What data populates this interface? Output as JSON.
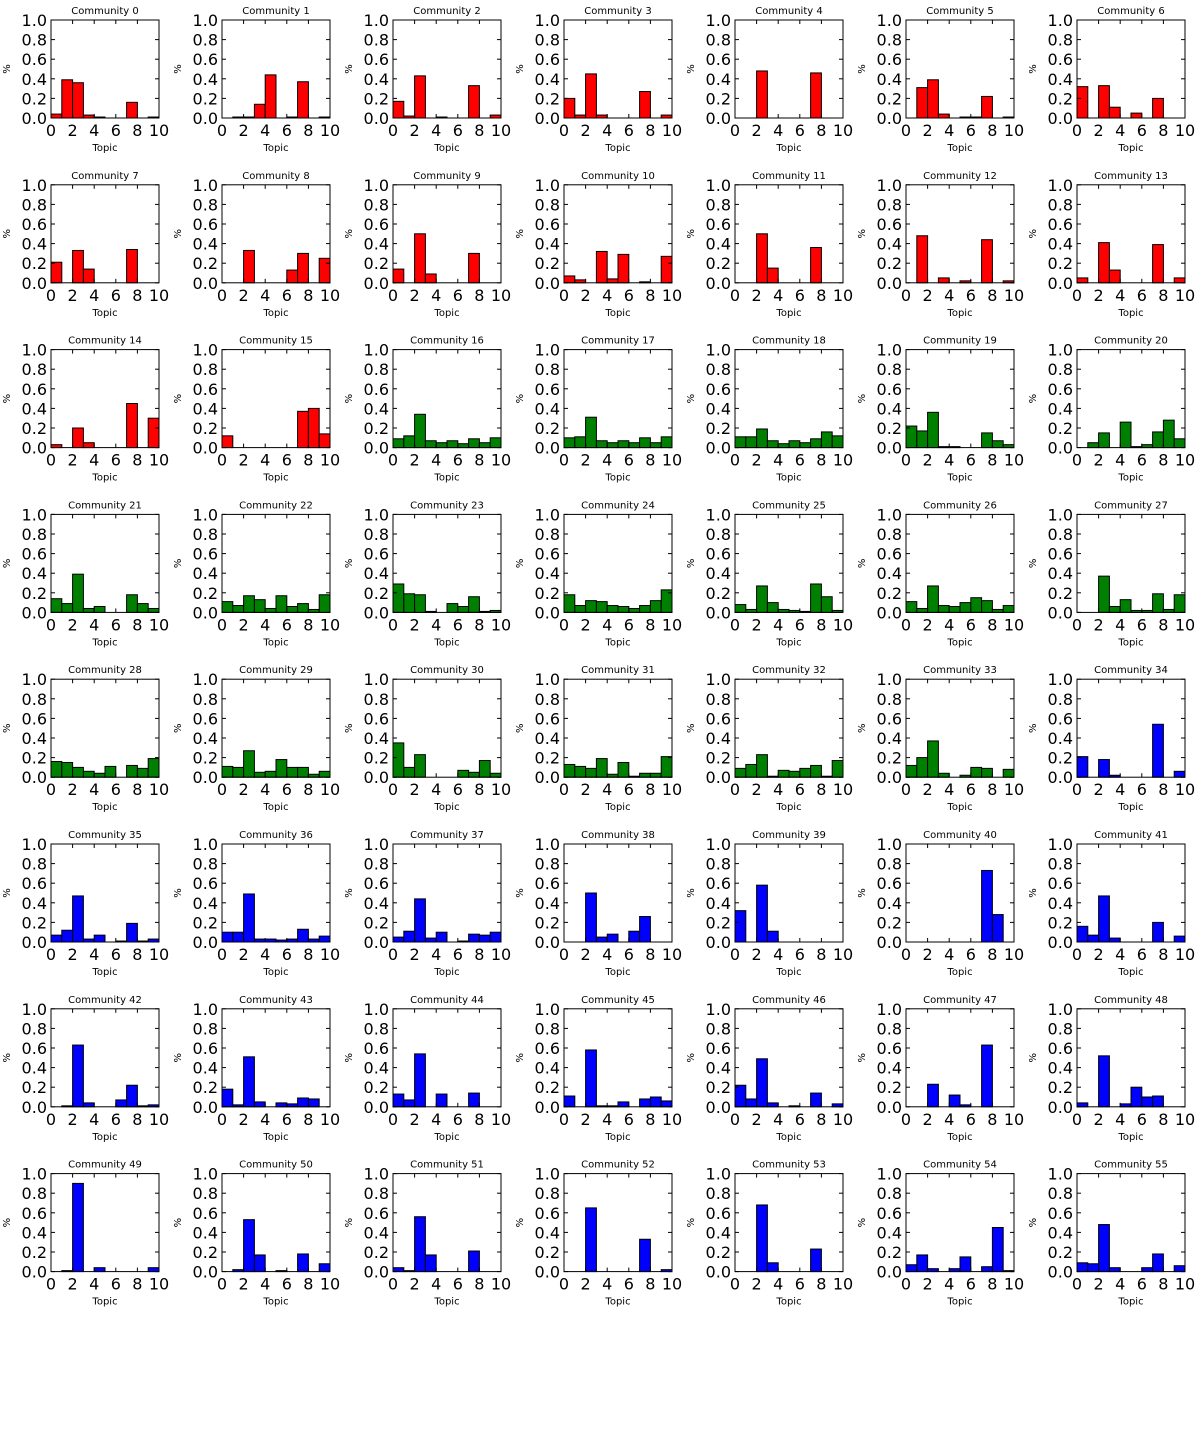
{
  "chart_defaults": {
    "type": "bar",
    "xlabel": "Topic",
    "ylabel": "%",
    "xlim": [
      0,
      10
    ],
    "ylim": [
      0,
      1.0
    ],
    "xticks": [
      "0",
      "2",
      "4",
      "6",
      "8",
      "10"
    ],
    "yticks": [
      "0.0",
      "0.2",
      "0.4",
      "0.6",
      "0.8",
      "1.0"
    ],
    "bar_width": 1,
    "grid": false,
    "legend": "none"
  },
  "colors": {
    "red": "#ff0000",
    "green": "#008000",
    "blue": "#0000ff"
  },
  "chart_data": [
    {
      "title": "Community 0",
      "color": "red",
      "values": [
        0.04,
        0.39,
        0.36,
        0.03,
        0.01,
        0,
        0,
        0.16,
        0,
        0.01
      ]
    },
    {
      "title": "Community 1",
      "color": "red",
      "values": [
        0,
        0.01,
        0.01,
        0.14,
        0.44,
        0,
        0.01,
        0.37,
        0,
        0.01
      ]
    },
    {
      "title": "Community 2",
      "color": "red",
      "values": [
        0.17,
        0.02,
        0.43,
        0,
        0.01,
        0,
        0,
        0.33,
        0,
        0.03
      ]
    },
    {
      "title": "Community 3",
      "color": "red",
      "values": [
        0.2,
        0.03,
        0.45,
        0.03,
        0,
        0,
        0,
        0.27,
        0,
        0.03
      ]
    },
    {
      "title": "Community 4",
      "color": "red",
      "values": [
        0,
        0,
        0.48,
        0,
        0,
        0,
        0,
        0.46,
        0,
        0
      ]
    },
    {
      "title": "Community 5",
      "color": "red",
      "values": [
        0,
        0.31,
        0.39,
        0.04,
        0,
        0.01,
        0.01,
        0.22,
        0,
        0.01
      ]
    },
    {
      "title": "Community 6",
      "color": "red",
      "values": [
        0.32,
        0,
        0.33,
        0.11,
        0,
        0.05,
        0,
        0.2,
        0,
        0
      ]
    },
    {
      "title": "Community 7",
      "color": "red",
      "values": [
        0.21,
        0,
        0.33,
        0.14,
        0,
        0,
        0,
        0.34,
        0,
        0
      ]
    },
    {
      "title": "Community 8",
      "color": "red",
      "values": [
        0,
        0,
        0.33,
        0,
        0,
        0,
        0.13,
        0.3,
        0,
        0.25
      ]
    },
    {
      "title": "Community 9",
      "color": "red",
      "values": [
        0.14,
        0,
        0.5,
        0.09,
        0,
        0,
        0,
        0.3,
        0,
        0
      ]
    },
    {
      "title": "Community 10",
      "color": "red",
      "values": [
        0.07,
        0.03,
        0,
        0.32,
        0.04,
        0.29,
        0,
        0.01,
        0,
        0.27
      ]
    },
    {
      "title": "Community 11",
      "color": "red",
      "values": [
        0,
        0,
        0.5,
        0.15,
        0,
        0,
        0,
        0.36,
        0,
        0
      ]
    },
    {
      "title": "Community 12",
      "color": "red",
      "values": [
        0,
        0.48,
        0,
        0.05,
        0,
        0.02,
        0,
        0.44,
        0,
        0.02
      ]
    },
    {
      "title": "Community 13",
      "color": "red",
      "values": [
        0.05,
        0,
        0.41,
        0.13,
        0,
        0,
        0,
        0.39,
        0,
        0.05
      ]
    },
    {
      "title": "Community 14",
      "color": "red",
      "values": [
        0.03,
        0,
        0.2,
        0.05,
        0,
        0,
        0,
        0.45,
        0,
        0.3
      ]
    },
    {
      "title": "Community 15",
      "color": "red",
      "values": [
        0.12,
        0,
        0,
        0,
        0,
        0,
        0,
        0.37,
        0.4,
        0.14
      ]
    },
    {
      "title": "Community 16",
      "color": "green",
      "values": [
        0.09,
        0.12,
        0.34,
        0.07,
        0.05,
        0.07,
        0.04,
        0.09,
        0.05,
        0.1
      ]
    },
    {
      "title": "Community 17",
      "color": "green",
      "values": [
        0.1,
        0.11,
        0.31,
        0.07,
        0.05,
        0.07,
        0.05,
        0.1,
        0.05,
        0.11
      ]
    },
    {
      "title": "Community 18",
      "color": "green",
      "values": [
        0.11,
        0.11,
        0.19,
        0.07,
        0.04,
        0.07,
        0.05,
        0.09,
        0.16,
        0.12
      ]
    },
    {
      "title": "Community 19",
      "color": "green",
      "values": [
        0.22,
        0.17,
        0.36,
        0.01,
        0.01,
        0,
        0,
        0.15,
        0.07,
        0.03
      ]
    },
    {
      "title": "Community 20",
      "color": "green",
      "values": [
        0,
        0.05,
        0.15,
        0,
        0.26,
        0.01,
        0.03,
        0.16,
        0.28,
        0.09
      ]
    },
    {
      "title": "Community 21",
      "color": "green",
      "values": [
        0.14,
        0.09,
        0.39,
        0.04,
        0.06,
        0,
        0,
        0.18,
        0.09,
        0.04
      ]
    },
    {
      "title": "Community 22",
      "color": "green",
      "values": [
        0.11,
        0.07,
        0.17,
        0.13,
        0.04,
        0.17,
        0.06,
        0.09,
        0.03,
        0.18
      ]
    },
    {
      "title": "Community 23",
      "color": "green",
      "values": [
        0.29,
        0.19,
        0.18,
        0.01,
        0,
        0.09,
        0.06,
        0.16,
        0.01,
        0.02
      ]
    },
    {
      "title": "Community 24",
      "color": "green",
      "values": [
        0.18,
        0.07,
        0.12,
        0.11,
        0.07,
        0.06,
        0.04,
        0.07,
        0.12,
        0.23
      ]
    },
    {
      "title": "Community 25",
      "color": "green",
      "values": [
        0.08,
        0.03,
        0.27,
        0.1,
        0.03,
        0.02,
        0.01,
        0.29,
        0.16,
        0.02
      ]
    },
    {
      "title": "Community 26",
      "color": "green",
      "values": [
        0.11,
        0.04,
        0.27,
        0.07,
        0.06,
        0.1,
        0.15,
        0.12,
        0.03,
        0.07
      ]
    },
    {
      "title": "Community 27",
      "color": "green",
      "values": [
        0,
        0,
        0.37,
        0.06,
        0.13,
        0.02,
        0.02,
        0.19,
        0.03,
        0.18
      ]
    },
    {
      "title": "Community 28",
      "color": "green",
      "values": [
        0.16,
        0.15,
        0.1,
        0.06,
        0.04,
        0.11,
        0,
        0.12,
        0.09,
        0.19
      ]
    },
    {
      "title": "Community 29",
      "color": "green",
      "values": [
        0.11,
        0.1,
        0.27,
        0.05,
        0.06,
        0.18,
        0.1,
        0.1,
        0.03,
        0.06
      ]
    },
    {
      "title": "Community 30",
      "color": "green",
      "values": [
        0.35,
        0.1,
        0.23,
        0,
        0,
        0,
        0.07,
        0.05,
        0.17,
        0.04
      ]
    },
    {
      "title": "Community 31",
      "color": "green",
      "values": [
        0.13,
        0.11,
        0.09,
        0.19,
        0.03,
        0.15,
        0.01,
        0.04,
        0.04,
        0.21
      ]
    },
    {
      "title": "Community 32",
      "color": "green",
      "values": [
        0.09,
        0.13,
        0.23,
        0.01,
        0.07,
        0.06,
        0.09,
        0.12,
        0.01,
        0.17
      ]
    },
    {
      "title": "Community 33",
      "color": "green",
      "values": [
        0.12,
        0.2,
        0.37,
        0.04,
        0,
        0.02,
        0.1,
        0.09,
        0,
        0.08
      ]
    },
    {
      "title": "Community 34",
      "color": "blue",
      "values": [
        0.21,
        0,
        0.18,
        0.02,
        0,
        0,
        0,
        0.54,
        0,
        0.06
      ]
    },
    {
      "title": "Community 35",
      "color": "blue",
      "values": [
        0.07,
        0.12,
        0.47,
        0.03,
        0.07,
        0,
        0.01,
        0.19,
        0.01,
        0.03
      ]
    },
    {
      "title": "Community 36",
      "color": "blue",
      "values": [
        0.1,
        0.1,
        0.49,
        0.03,
        0.03,
        0.02,
        0.03,
        0.13,
        0.03,
        0.06
      ]
    },
    {
      "title": "Community 37",
      "color": "blue",
      "values": [
        0.05,
        0.11,
        0.44,
        0.04,
        0.1,
        0,
        0.01,
        0.08,
        0.07,
        0.1
      ]
    },
    {
      "title": "Community 38",
      "color": "blue",
      "values": [
        0,
        0,
        0.5,
        0.05,
        0.08,
        0,
        0.11,
        0.26,
        0,
        0
      ]
    },
    {
      "title": "Community 39",
      "color": "blue",
      "values": [
        0.32,
        0,
        0.58,
        0.11,
        0,
        0,
        0,
        0,
        0,
        0
      ]
    },
    {
      "title": "Community 40",
      "color": "blue",
      "values": [
        0,
        0,
        0,
        0,
        0,
        0,
        0,
        0.73,
        0.28,
        0
      ]
    },
    {
      "title": "Community 41",
      "color": "blue",
      "values": [
        0.16,
        0.07,
        0.47,
        0.04,
        0,
        0,
        0,
        0.2,
        0,
        0.06
      ]
    },
    {
      "title": "Community 42",
      "color": "blue",
      "values": [
        0,
        0.01,
        0.63,
        0.04,
        0,
        0,
        0.07,
        0.22,
        0.01,
        0.02
      ]
    },
    {
      "title": "Community 43",
      "color": "blue",
      "values": [
        0.18,
        0.02,
        0.51,
        0.05,
        0,
        0.04,
        0.03,
        0.09,
        0.08,
        0
      ]
    },
    {
      "title": "Community 44",
      "color": "blue",
      "values": [
        0.13,
        0.07,
        0.54,
        0,
        0.13,
        0,
        0,
        0.14,
        0,
        0
      ]
    },
    {
      "title": "Community 45",
      "color": "blue",
      "values": [
        0.11,
        0,
        0.58,
        0.01,
        0.01,
        0.05,
        0,
        0.08,
        0.1,
        0.06
      ]
    },
    {
      "title": "Community 46",
      "color": "blue",
      "values": [
        0.22,
        0.08,
        0.49,
        0.04,
        0,
        0.01,
        0,
        0.14,
        0,
        0.03
      ]
    },
    {
      "title": "Community 47",
      "color": "blue",
      "values": [
        0,
        0,
        0.23,
        0,
        0.12,
        0.02,
        0,
        0.63,
        0,
        0
      ]
    },
    {
      "title": "Community 48",
      "color": "blue",
      "values": [
        0.04,
        0,
        0.52,
        0,
        0.03,
        0.2,
        0.1,
        0.11,
        0,
        0
      ]
    },
    {
      "title": "Community 49",
      "color": "blue",
      "values": [
        0,
        0.01,
        0.9,
        0,
        0.04,
        0,
        0,
        0,
        0,
        0.04
      ]
    },
    {
      "title": "Community 50",
      "color": "blue",
      "values": [
        0,
        0.02,
        0.53,
        0.17,
        0,
        0.01,
        0,
        0.18,
        0,
        0.08
      ]
    },
    {
      "title": "Community 51",
      "color": "blue",
      "values": [
        0.04,
        0.01,
        0.56,
        0.17,
        0,
        0,
        0,
        0.21,
        0,
        0
      ]
    },
    {
      "title": "Community 52",
      "color": "blue",
      "values": [
        0,
        0,
        0.65,
        0,
        0,
        0,
        0,
        0.33,
        0,
        0.02
      ]
    },
    {
      "title": "Community 53",
      "color": "blue",
      "values": [
        0,
        0,
        0.68,
        0.09,
        0,
        0,
        0,
        0.23,
        0,
        0
      ]
    },
    {
      "title": "Community 54",
      "color": "blue",
      "values": [
        0.07,
        0.17,
        0.03,
        0,
        0.03,
        0.15,
        0,
        0.05,
        0.45,
        0.01
      ]
    },
    {
      "title": "Community 55",
      "color": "blue",
      "values": [
        0.09,
        0.08,
        0.48,
        0.04,
        0,
        0,
        0.04,
        0.18,
        0,
        0.06
      ]
    }
  ]
}
